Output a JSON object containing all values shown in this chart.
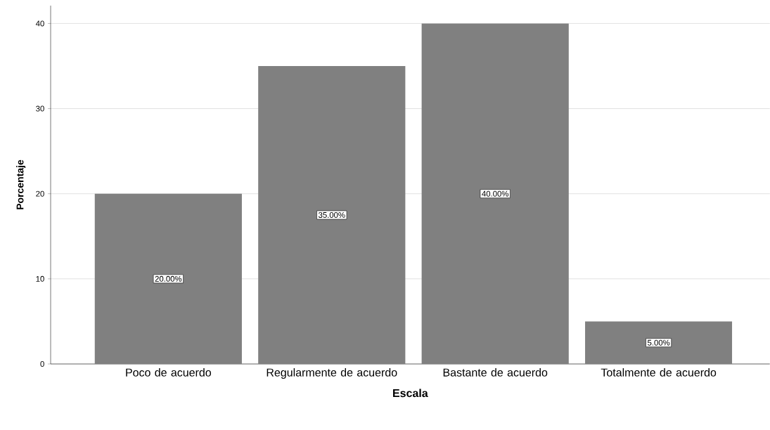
{
  "chart_data": {
    "type": "bar",
    "xlabel": "Escala",
    "ylabel": "Porcentaje",
    "categories": [
      "Poco de acuerdo",
      "Regularmente de acuerdo",
      "Bastante de acuerdo",
      "Totalmente de acuerdo"
    ],
    "values": [
      20,
      35,
      40,
      5
    ],
    "value_labels": [
      "20.00%",
      "35.00%",
      "40.00%",
      "5.00%"
    ],
    "color": "#808080",
    "ylim": [
      0,
      42.1
    ],
    "yticks": [
      0,
      10,
      20,
      30,
      40
    ],
    "grid": "y"
  }
}
